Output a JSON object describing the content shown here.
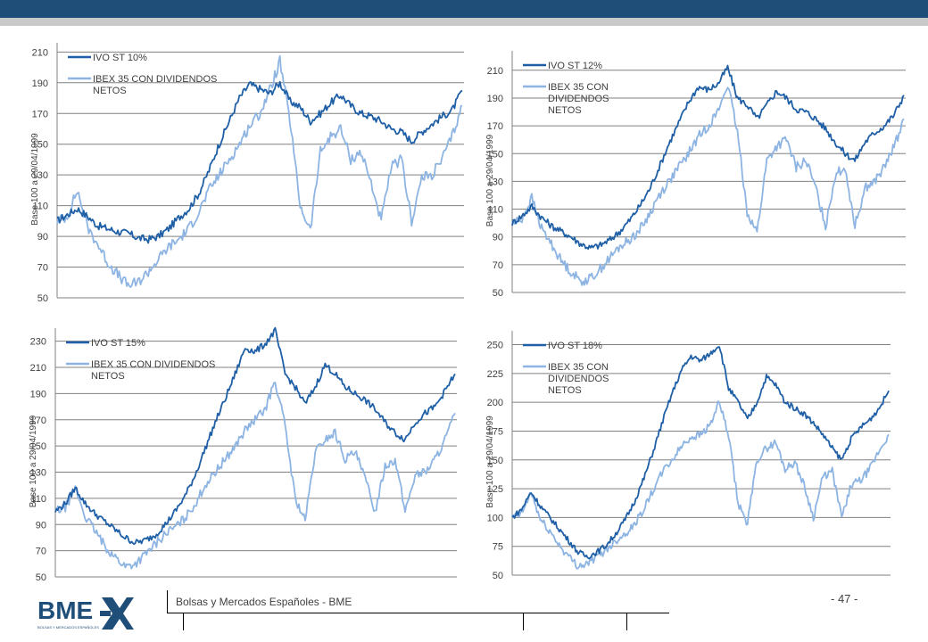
{
  "footer": {
    "company": "Bolsas y Mercados Españoles - BME",
    "page": "- 47 -",
    "logo_text": "BME",
    "logo_subtext": "BOLSAS Y MERCADOS ESPAÑOLES"
  },
  "colors": {
    "dark_series": "#1f5fa6",
    "light_series": "#8db4e2",
    "top_bar": "#1f4e79",
    "top_stripe": "#c9c9c9",
    "logo": "#1f4e79"
  },
  "chart_data": [
    {
      "type": "line",
      "ylabel": "Base 100 a 29/04/1999",
      "yticks": [
        50,
        70,
        90,
        110,
        130,
        150,
        170,
        190,
        210
      ],
      "ytick_labels": [
        "50",
        "70",
        "90",
        "110",
        "130",
        "150",
        "170",
        "190",
        "210"
      ],
      "ylim": [
        50,
        216
      ],
      "grid": true,
      "legend": "top-left",
      "series": [
        {
          "name": "IVO ST 10%",
          "color": "dark",
          "values": [
            100,
            104,
            108,
            103,
            97,
            95,
            93,
            92,
            89,
            88,
            90,
            95,
            102,
            108,
            118,
            133,
            150,
            165,
            180,
            189,
            186,
            183,
            190,
            178,
            174,
            165,
            170,
            177,
            182,
            175,
            170,
            168,
            165,
            160,
            158,
            152,
            158,
            163,
            168,
            172,
            185
          ]
        },
        {
          "name": "IBEX 35 CON DIVIDENDOS NETOS",
          "color": "light",
          "values": [
            100,
            103,
            120,
            96,
            85,
            73,
            65,
            58,
            60,
            67,
            75,
            83,
            88,
            95,
            106,
            120,
            130,
            140,
            150,
            162,
            170,
            185,
            204,
            165,
            110,
            94,
            145,
            155,
            160,
            140,
            145,
            125,
            100,
            135,
            140,
            100,
            128,
            130,
            140,
            155,
            175
          ]
        }
      ]
    },
    {
      "type": "line",
      "ylabel": "Base 100 a 29/04/1999",
      "yticks": [
        50,
        70,
        90,
        110,
        130,
        150,
        170,
        190,
        210
      ],
      "ytick_labels": [
        "50",
        "70",
        "90",
        "110",
        "130",
        "150",
        "170",
        "190",
        "210"
      ],
      "ylim": [
        50,
        224
      ],
      "grid": true,
      "legend": "top-left",
      "series": [
        {
          "name": "IVO ST 12%",
          "color": "dark",
          "values": [
            100,
            105,
            112,
            104,
            98,
            94,
            90,
            85,
            82,
            84,
            88,
            94,
            102,
            112,
            124,
            140,
            157,
            172,
            187,
            198,
            196,
            200,
            212,
            190,
            185,
            175,
            185,
            195,
            190,
            182,
            180,
            175,
            168,
            158,
            150,
            145,
            158,
            165,
            170,
            178,
            192
          ]
        },
        {
          "name": "IBEX 35 CON DIVIDENDOS NETOS",
          "color": "light",
          "values": [
            100,
            103,
            118,
            96,
            85,
            73,
            65,
            58,
            60,
            67,
            75,
            83,
            88,
            95,
            106,
            120,
            130,
            140,
            150,
            162,
            170,
            180,
            200,
            165,
            108,
            93,
            145,
            155,
            160,
            140,
            145,
            125,
            98,
            135,
            140,
            98,
            125,
            130,
            140,
            155,
            175
          ]
        }
      ]
    },
    {
      "type": "line",
      "ylabel": "Base 100 a 29/04/1999",
      "yticks": [
        50,
        70,
        90,
        110,
        130,
        150,
        170,
        190,
        210,
        230
      ],
      "ytick_labels": [
        "50",
        "70",
        "90",
        "110",
        "130",
        "150",
        "170",
        "190",
        "210",
        "230"
      ],
      "ylim": [
        50,
        240
      ],
      "grid": true,
      "legend": "top-left",
      "series": [
        {
          "name": "IVO ST 15%",
          "color": "dark",
          "values": [
            100,
            106,
            118,
            106,
            98,
            92,
            86,
            80,
            76,
            78,
            82,
            90,
            100,
            112,
            128,
            148,
            168,
            186,
            205,
            225,
            222,
            228,
            238,
            205,
            195,
            182,
            195,
            212,
            205,
            195,
            190,
            185,
            178,
            168,
            160,
            155,
            168,
            175,
            180,
            192,
            205
          ]
        },
        {
          "name": "IBEX 35 CON DIVIDENDOS NETOS",
          "color": "light",
          "values": [
            100,
            103,
            118,
            96,
            85,
            73,
            65,
            58,
            60,
            67,
            75,
            83,
            88,
            95,
            106,
            120,
            130,
            140,
            150,
            162,
            170,
            178,
            200,
            165,
            110,
            93,
            145,
            155,
            160,
            140,
            145,
            125,
            100,
            135,
            140,
            100,
            128,
            130,
            140,
            155,
            175
          ]
        }
      ]
    },
    {
      "type": "line",
      "ylabel": "Base 100 a 29/04/1999",
      "yticks": [
        50,
        75,
        100,
        125,
        150,
        175,
        200,
        225,
        250
      ],
      "ytick_labels": [
        "50",
        "75",
        "100",
        "125",
        "150",
        "175",
        "200",
        "225",
        "250"
      ],
      "ylim": [
        50,
        262
      ],
      "grid": true,
      "legend": "top-left",
      "series": [
        {
          "name": "IVO ST 18%",
          "color": "dark",
          "values": [
            100,
            107,
            122,
            110,
            100,
            90,
            80,
            70,
            66,
            70,
            76,
            86,
            98,
            114,
            134,
            158,
            184,
            208,
            228,
            240,
            236,
            242,
            250,
            212,
            200,
            185,
            200,
            222,
            215,
            200,
            195,
            190,
            182,
            172,
            160,
            150,
            168,
            178,
            185,
            195,
            210
          ]
        },
        {
          "name": "IBEX 35 CON DIVIDENDOS NETOS",
          "color": "light",
          "values": [
            100,
            103,
            122,
            98,
            88,
            76,
            66,
            58,
            60,
            66,
            72,
            80,
            86,
            94,
            108,
            124,
            140,
            150,
            162,
            170,
            172,
            180,
            200,
            170,
            112,
            95,
            150,
            160,
            165,
            142,
            148,
            128,
            100,
            135,
            140,
            100,
            128,
            132,
            142,
            158,
            172
          ]
        }
      ]
    }
  ]
}
